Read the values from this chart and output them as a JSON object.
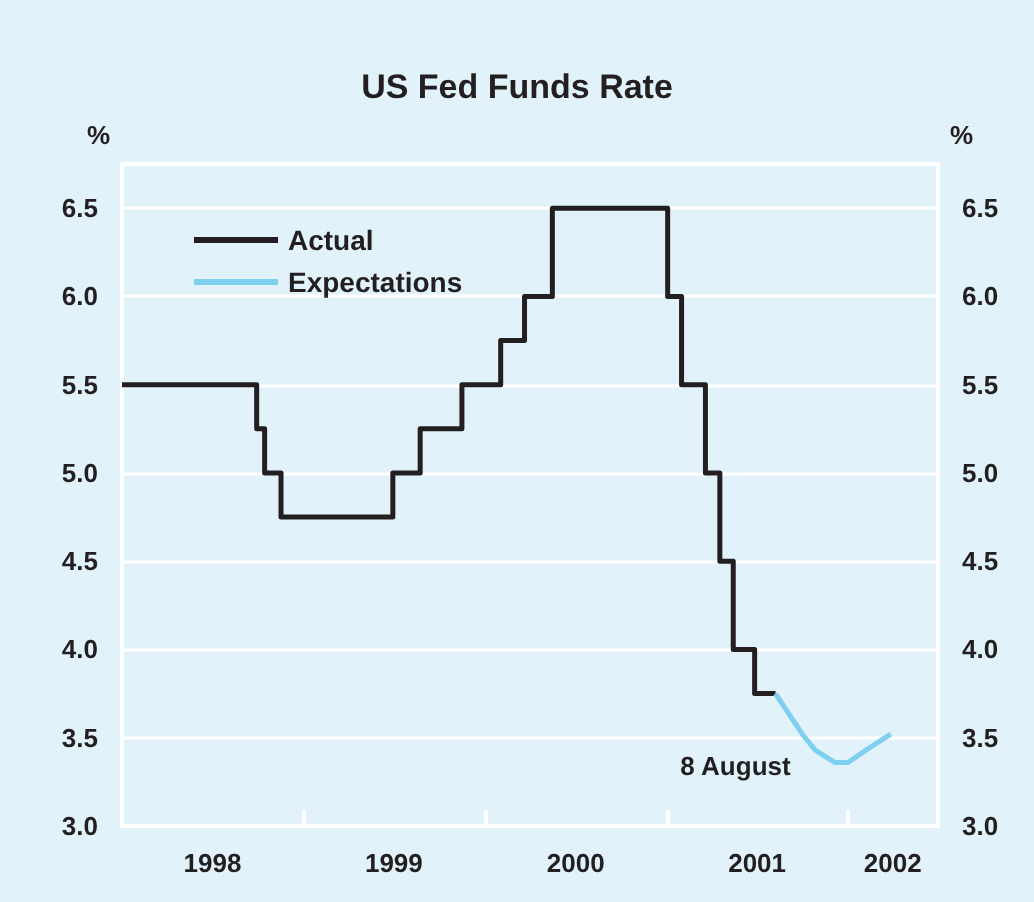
{
  "chart_data": {
    "type": "step",
    "title": "US Fed Funds Rate",
    "ylabel": "%",
    "y2label": "%",
    "annotations": [
      {
        "text": "8 August",
        "x": "2001-08-08",
        "y": 3.75
      }
    ],
    "series": [
      {
        "name": "Actual",
        "color": "#231f20",
        "x": [
          "1998-01-01",
          "1998-09-29",
          "1998-10-15",
          "1998-11-17",
          "1999-06-30",
          "1999-08-24",
          "1999-11-16",
          "2000-02-02",
          "2000-03-21",
          "2000-05-16",
          "2001-01-03",
          "2001-01-31",
          "2001-03-20",
          "2001-04-18",
          "2001-05-15",
          "2001-06-27",
          "2001-08-08"
        ],
        "values": [
          5.5,
          5.25,
          5.0,
          4.75,
          5.0,
          5.25,
          5.5,
          5.75,
          6.0,
          6.5,
          6.0,
          5.5,
          5.0,
          4.5,
          4.0,
          3.75,
          3.75
        ]
      },
      {
        "name": "Expectations",
        "type": "line",
        "color": "#7fd0f0",
        "x": [
          "2001-08-08",
          "2001-10-01",
          "2001-10-27",
          "2001-12-05",
          "2002-01-01",
          "2002-02-06",
          "2002-03-28"
        ],
        "values": [
          3.75,
          3.52,
          3.43,
          3.36,
          3.36,
          3.43,
          3.52
        ]
      }
    ],
    "xlim": [
      "1998-01-01",
      "2002-07-01"
    ],
    "xticks": [
      {
        "value": "1998-07-02",
        "label": "1998"
      },
      {
        "value": "1999-01-01",
        "label": null
      },
      {
        "value": "1999-07-02",
        "label": "1999"
      },
      {
        "value": "2000-01-01",
        "label": null
      },
      {
        "value": "2000-07-02",
        "label": "2000"
      },
      {
        "value": "2001-01-01",
        "label": null
      },
      {
        "value": "2001-07-02",
        "label": "2001"
      },
      {
        "value": "2002-01-01",
        "label": null
      },
      {
        "value": "2002-04-01",
        "label": "2002"
      }
    ],
    "ylim": [
      3,
      6.75
    ],
    "yticks": [
      {
        "value": 3,
        "label": "3.0"
      },
      {
        "value": 3.5,
        "label": "3.5"
      },
      {
        "value": 4,
        "label": "4.0"
      },
      {
        "value": 4.5,
        "label": "4.5"
      },
      {
        "value": 5,
        "label": "5.0"
      },
      {
        "value": 5.5,
        "label": "5.5"
      },
      {
        "value": 6,
        "label": "6.0"
      },
      {
        "value": 6.5,
        "label": "6.5"
      }
    ],
    "y2lim": [
      3,
      6.75
    ],
    "y2ticks": [
      {
        "value": 3,
        "label": "3.0"
      },
      {
        "value": 3.5,
        "label": "3.5"
      },
      {
        "value": 4,
        "label": "4.0"
      },
      {
        "value": 4.5,
        "label": "4.5"
      },
      {
        "value": 5,
        "label": "5.0"
      },
      {
        "value": 5.5,
        "label": "5.5"
      },
      {
        "value": 6,
        "label": "6.0"
      },
      {
        "value": 6.5,
        "label": "6.5"
      }
    ],
    "grid": "y",
    "legend": "top left",
    "line_style": "solid",
    "marker": "none"
  }
}
